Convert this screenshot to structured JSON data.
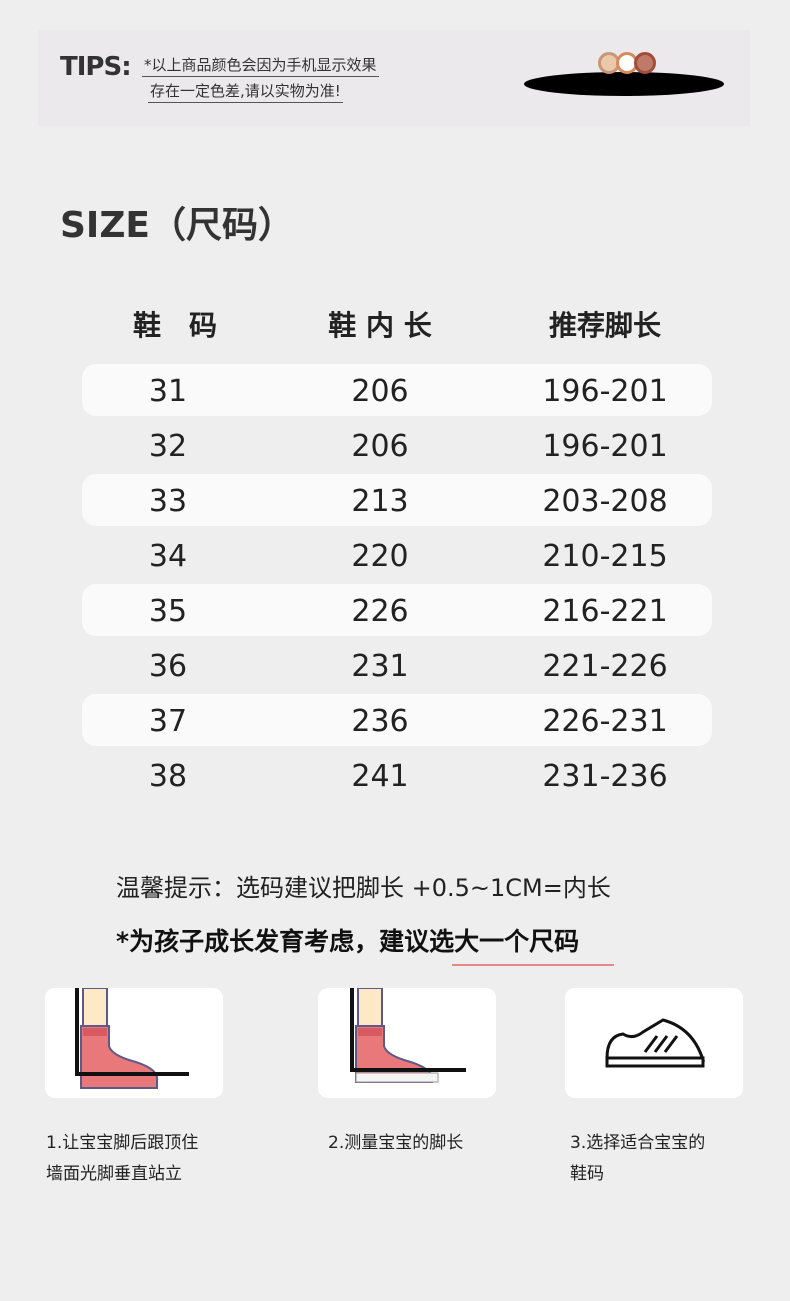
{
  "tips": {
    "label": "TIPS:",
    "line1": "*以上商品颜色会因为手机显示效果",
    "line2": "存在一定色差,请以实物为准!"
  },
  "title": "SIZE（尺码）",
  "table": {
    "headers": [
      "鞋　码",
      "鞋 内 长",
      "推荐脚长"
    ],
    "rows": [
      [
        "31",
        "206",
        "196-201"
      ],
      [
        "32",
        "206",
        "196-201"
      ],
      [
        "33",
        "213",
        "203-208"
      ],
      [
        "34",
        "220",
        "210-215"
      ],
      [
        "35",
        "226",
        "216-221"
      ],
      [
        "36",
        "231",
        "221-226"
      ],
      [
        "37",
        "236",
        "226-231"
      ],
      [
        "38",
        "241",
        "231-236"
      ]
    ]
  },
  "notes": {
    "tip": "温馨提示：选码建议把脚长 +0.5~1CM=内长",
    "advice": "*为孩子成长发育考虑，建议选大一个尺码"
  },
  "steps": [
    {
      "icon": "foot-against-wall-icon",
      "line1": "1.让宝宝脚后跟顶住",
      "line2": "墙面光脚垂直站立"
    },
    {
      "icon": "foot-ruler-icon",
      "line1": "2.测量宝宝的脚长",
      "line2": ""
    },
    {
      "icon": "shoe-icon",
      "line1": "3.选择适合宝宝的",
      "line2": "鞋码"
    }
  ],
  "colors": {
    "accent_underline": "#e28a8a",
    "sock": "#e8787a",
    "row_alt": "#fafafa"
  }
}
